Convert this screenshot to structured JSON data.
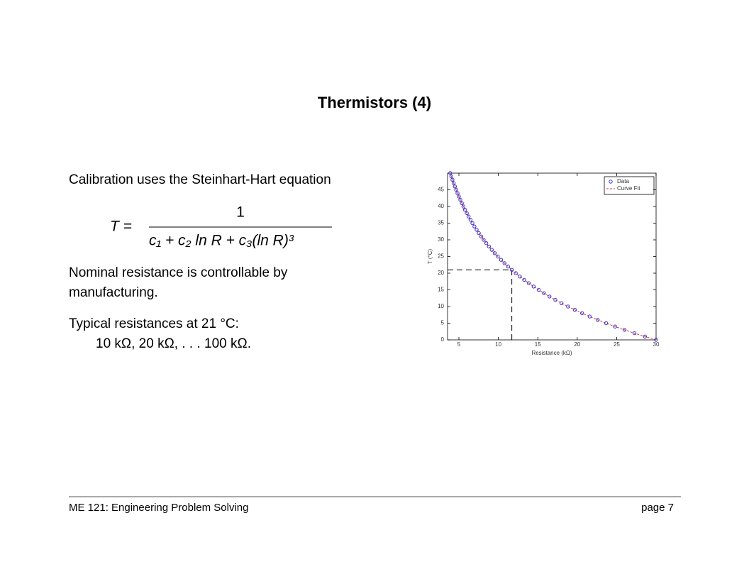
{
  "title": "Thermistors (4)",
  "intro": "Calibration uses the Steinhart-Hart equation",
  "equation": {
    "lhs": "T  =",
    "numerator": "1",
    "denominator": "c₁ + c₂ ln R + c₃(ln R)³"
  },
  "nominal": [
    "Nominal resistance is controllable by",
    "manufacturing."
  ],
  "typical": "Typical resistances at 21 °C:",
  "typical_values": "10 kΩ,  20 kΩ,  . . .  100 kΩ.",
  "footer": {
    "left": "ME 121: Engineering Problem Solving",
    "right": "page 7"
  },
  "chart_data": {
    "type": "scatter",
    "xlabel": "Resistance (kΩ)",
    "ylabel": "T (°C)",
    "x": [
      30.0,
      28.59,
      27.26,
      26.0,
      24.8,
      23.67,
      22.6,
      21.58,
      20.62,
      19.7,
      18.84,
      18.01,
      17.23,
      16.49,
      15.78,
      15.11,
      14.47,
      13.86,
      13.28,
      12.73,
      12.21,
      11.71,
      11.23,
      10.78,
      10.35,
      9.93,
      9.54,
      9.17,
      8.81,
      8.47,
      8.14,
      7.83,
      7.53,
      7.25,
      6.97,
      6.71,
      6.47,
      6.23,
      6.0,
      5.78,
      5.57,
      5.37,
      5.18,
      5.0,
      4.82,
      4.65,
      4.49,
      4.33,
      4.18,
      4.04,
      3.9
    ],
    "series": [
      {
        "name": "Data",
        "color": "#3535d0",
        "values": [
          0,
          1,
          2,
          3,
          4,
          5,
          6,
          7,
          8,
          9,
          10,
          11,
          12,
          13,
          14,
          15,
          16,
          17,
          18,
          19,
          20,
          21,
          22,
          23,
          24,
          25,
          26,
          27,
          28,
          29,
          30,
          31,
          32,
          33,
          34,
          35,
          36,
          37,
          38,
          39,
          40,
          41,
          42,
          43,
          44,
          45,
          46,
          47,
          48,
          49,
          50
        ]
      },
      {
        "name": "Curve Fit",
        "color": "#e0303a",
        "values": [
          0,
          1,
          2,
          3,
          4,
          5,
          6,
          7,
          8,
          9,
          10,
          11,
          12,
          13,
          14,
          15,
          16,
          17,
          18,
          19,
          20,
          21,
          22,
          23,
          24,
          25,
          26,
          27,
          28,
          29,
          30,
          31,
          32,
          33,
          34,
          35,
          36,
          37,
          38,
          39,
          40,
          41,
          42,
          43,
          44,
          45,
          46,
          47,
          48,
          49,
          50
        ]
      }
    ],
    "guide": {
      "x": 11.71,
      "y": 21
    },
    "xlim": [
      3.56,
      30
    ],
    "ylim": [
      0,
      50
    ],
    "xticks": [
      5,
      10,
      15,
      20,
      25,
      30
    ],
    "yticks": [
      0,
      5,
      10,
      15,
      20,
      25,
      30,
      35,
      40,
      45
    ],
    "legend": "upper right"
  }
}
